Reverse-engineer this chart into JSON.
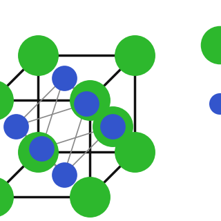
{
  "green_color": "#2db82d",
  "blue_color": "#3355cc",
  "bg_color": "#ffffff",
  "line_color_cube": "#111111",
  "line_color_inner": "#888888",
  "green_size": 1800,
  "blue_size": 700,
  "legend_green_size": 1600,
  "legend_blue_size": 500,
  "lw_cube": 2.5,
  "lw_inner": 1.2
}
